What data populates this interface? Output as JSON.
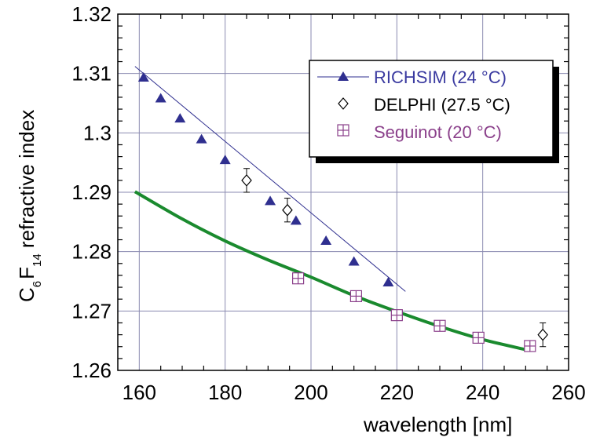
{
  "chart_data": {
    "type": "scatter",
    "xlabel": "wavelength [nm]",
    "ylabel": {
      "parts": [
        "C",
        "6",
        "F",
        "14",
        " refractive index"
      ]
    },
    "xlim": [
      155,
      260
    ],
    "ylim": [
      1.26,
      1.32
    ],
    "x_ticks": [
      "160",
      "180",
      "200",
      "220",
      "240",
      "260"
    ],
    "y_ticks": [
      "1.26",
      "1.27",
      "1.28",
      "1.29",
      "1.3",
      "1.31",
      "1.32"
    ],
    "grid": true,
    "legend": {
      "placement": "top-right"
    },
    "series": [
      {
        "name": "RICHSIM (24 °C)",
        "marker": "triangle",
        "color": "#2f2f8f",
        "line": {
          "x": [
            159,
            222
          ],
          "y": [
            1.3112,
            1.2733
          ]
        },
        "x": [
          161,
          165,
          169.5,
          174.5,
          180,
          190.5,
          196.5,
          203.5,
          210,
          218
        ],
        "y": [
          1.3093,
          1.3058,
          1.3024,
          1.2989,
          1.2954,
          1.2885,
          1.2852,
          1.2818,
          1.2783,
          1.2748
        ]
      },
      {
        "name": "DELPHI (27.5 °C)",
        "marker": "diamond-open",
        "color": "#000000",
        "x": [
          185,
          194.5,
          254
        ],
        "y": [
          1.292,
          1.287,
          1.266
        ],
        "err": [
          0.002,
          0.002,
          0.002
        ]
      },
      {
        "name": "Seguinot (20 °C)",
        "marker": "square-plus",
        "color": "#8a3f8a",
        "x": [
          197,
          210.5,
          220,
          230,
          239,
          251
        ],
        "y": [
          1.2755,
          1.2725,
          1.2693,
          1.2675,
          1.2655,
          1.2641
        ]
      },
      {
        "name": "",
        "marker": "none",
        "color": "#1a8a2e",
        "x": [
          159,
          170,
          180,
          190,
          200,
          210,
          220,
          230,
          240,
          250
        ],
        "y": [
          1.2901,
          1.2855,
          1.2818,
          1.2786,
          1.2757,
          1.2726,
          1.2699,
          1.2674,
          1.2652,
          1.2635
        ]
      }
    ]
  }
}
